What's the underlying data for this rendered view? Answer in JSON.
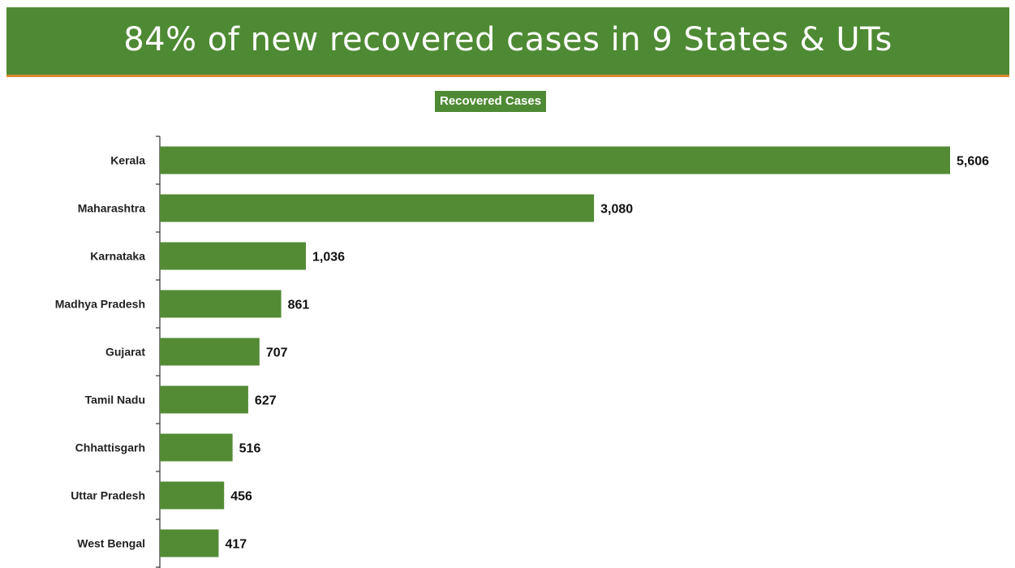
{
  "header": {
    "title": "84% of new recovered cases in 9 States & UTs"
  },
  "colors": {
    "banner": "#4e8a34",
    "banner_underline": "#d98a2e",
    "bar": "#538b35"
  },
  "chart_data": {
    "type": "bar",
    "orientation": "horizontal",
    "title": "84% of new recovered cases in 9 States & UTs",
    "xlabel": "",
    "ylabel": "",
    "xlim": [
      0,
      5606
    ],
    "grid": false,
    "legend": "top-center",
    "categories": [
      "Kerala",
      "Maharashtra",
      "Karnataka",
      "Madhya Pradesh",
      "Gujarat",
      "Tamil Nadu",
      "Chhattisgarh",
      "Uttar Pradesh",
      "West Bengal"
    ],
    "series": [
      {
        "name": "Recovered Cases",
        "values": [
          5606,
          3080,
          1036,
          861,
          707,
          627,
          516,
          456,
          417
        ],
        "value_labels": [
          "5,606",
          "3,080",
          "1,036",
          "861",
          "707",
          "627",
          "516",
          "456",
          "417"
        ]
      }
    ]
  }
}
